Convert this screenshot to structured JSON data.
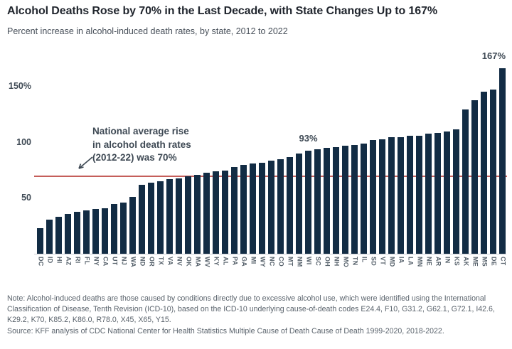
{
  "header": {
    "title": "Alcohol Deaths Rose by 70% in the Last Decade, with State Changes Up to 167%",
    "subtitle": "Percent increase in alcohol-induced death rates, by state, 2012 to 2022"
  },
  "annotation": {
    "line1": "National average rise",
    "line2": "in alcohol death rates",
    "line3": "(2012-22) was 70%"
  },
  "chart_data": {
    "type": "bar",
    "title": "Alcohol Deaths Rose by 70% in the Last Decade, with State Changes Up to 167%",
    "subtitle": "Percent increase in alcohol-induced death rates, by state, 2012 to 2022",
    "unit": "percent",
    "xlabel": "",
    "ylabel": "Percent increase",
    "ylim": [
      0,
      175
    ],
    "grid": false,
    "bar_color": "#122c44",
    "categories": [
      "DC",
      "ID",
      "HI",
      "AZ",
      "RI",
      "FL",
      "NY",
      "CA",
      "UT",
      "NJ",
      "WA",
      "ND",
      "OR",
      "TX",
      "VA",
      "NV",
      "OK",
      "MA",
      "WV",
      "KY",
      "AL",
      "PA",
      "GA",
      "MI",
      "WY",
      "NC",
      "CO",
      "MT",
      "NM",
      "WI",
      "SC",
      "OH",
      "NH",
      "MO",
      "TN",
      "IL",
      "SD",
      "VT",
      "MD",
      "IA",
      "LA",
      "MN",
      "NE",
      "AR",
      "IN",
      "KS",
      "AK",
      "ME",
      "MS",
      "DE",
      "CT"
    ],
    "values": [
      23,
      31,
      33,
      36,
      38,
      39,
      40,
      41,
      45,
      46,
      51,
      62,
      64,
      65,
      67,
      68,
      70,
      71,
      73,
      74,
      75,
      78,
      80,
      81,
      82,
      84,
      85,
      87,
      90,
      93,
      94,
      95,
      96,
      97,
      98,
      99,
      102,
      103,
      105,
      105,
      106,
      106,
      108,
      109,
      110,
      112,
      130,
      138,
      146,
      148,
      167
    ],
    "yticks": [
      {
        "label": "150%",
        "value": 150
      },
      {
        "label": "100",
        "value": 100
      },
      {
        "label": "50",
        "value": 50
      }
    ],
    "point_labels": [
      {
        "index": 29,
        "text": "93%",
        "align": "center"
      },
      {
        "index": 50,
        "text": "167%",
        "align": "right"
      }
    ],
    "reference_line": {
      "value": 70,
      "color": "#c0504c",
      "label": "National average rise in alcohol death rates (2012-22) was 70%"
    }
  },
  "footer": {
    "note": "Note: Alcohol-induced deaths are those caused by conditions directly due to excessive alcohol use, which were identified using the International Classification of Disease, Tenth Revision (ICD-10), based on the ICD-10 underlying cause-of-death codes E24.4, F10, G31.2, G62.1, G72.1, I42.6, K29.2, K70, K85.2, K86.0, R78.0, X45, X65, Y15.",
    "source": "Source: KFF analysis of CDC National Center for Health Statistics Multiple Cause of Death Cause of Death 1999-2020, 2018-2022."
  }
}
